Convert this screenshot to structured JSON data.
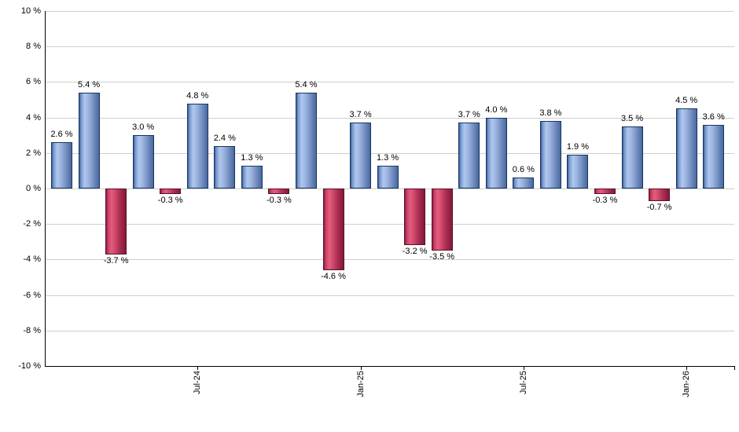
{
  "chart_data": {
    "type": "bar",
    "title": "",
    "legend": "none",
    "grid": true,
    "ylim": [
      -10,
      10
    ],
    "y_step": 2,
    "values": [
      2.6,
      5.4,
      -3.7,
      3.0,
      -0.3,
      4.8,
      2.4,
      1.3,
      -0.3,
      5.4,
      -4.6,
      3.7,
      1.3,
      -3.2,
      -3.5,
      3.7,
      4.0,
      0.6,
      3.8,
      1.9,
      -0.3,
      3.5,
      -0.7,
      4.5,
      3.6
    ],
    "value_labels": [
      "2.6 %",
      "5.4 %",
      "-3.7 %",
      "3.0 %",
      "-0.3 %",
      "4.8 %",
      "2.4 %",
      "1.3 %",
      "-0.3 %",
      "5.4 %",
      "-4.6 %",
      "3.7 %",
      "1.3 %",
      "-3.2 %",
      "-3.5 %",
      "3.7 %",
      "4.0 %",
      "0.6 %",
      "3.8 %",
      "1.9 %",
      "-0.3 %",
      "3.5 %",
      "-0.7 %",
      "4.5 %",
      "3.6 %"
    ],
    "x_ticks": [
      {
        "index": 5,
        "label": "Jul-24"
      },
      {
        "index": 11,
        "label": "Jan-25"
      },
      {
        "index": 17,
        "label": "Jul-25"
      },
      {
        "index": 23,
        "label": "Jan-26"
      }
    ],
    "y_tick_labels": [
      "10 %",
      "8 %",
      "6 %",
      "4 %",
      "2 %",
      "0 %",
      "-2 %",
      "-4 %",
      "-6 %",
      "-8 %",
      "-10 %"
    ],
    "bar_colors": {
      "positive": {
        "border": "#17365D",
        "gradient": [
          "#3E5F9E",
          "#7E9CD0",
          "#AEC8EE",
          "#9DB5DF",
          "#7F99C9",
          "#5F7DB3",
          "#49689F"
        ]
      },
      "negative": {
        "border": "#5A102C",
        "gradient": [
          "#8E1C40",
          "#C84066",
          "#E45C7E",
          "#D14A6C",
          "#B13356",
          "#972244",
          "#821A38"
        ]
      }
    },
    "gridline_color": "#CFCFCF",
    "axis_color": "#000000",
    "text_color": "#000000"
  }
}
